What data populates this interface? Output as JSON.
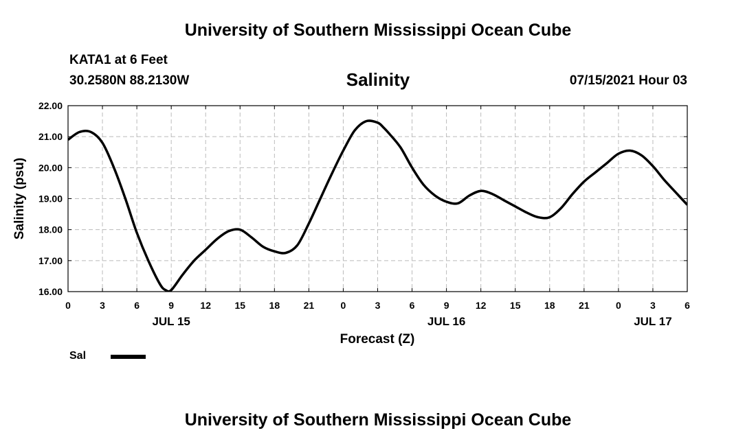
{
  "header": {
    "title": "University of Southern Mississippi Ocean Cube",
    "station": "KATA1 at 6 Feet",
    "coordinates": "30.2580N  88.2130W",
    "datetime": "07/15/2021 Hour 03"
  },
  "footer": {
    "title": "University of Southern Mississippi Ocean Cube"
  },
  "legend": {
    "label": "Sal"
  },
  "chart_data": {
    "type": "line",
    "title": "Salinity",
    "xlabel": "Forecast (Z)",
    "ylabel": "Salinity (psu)",
    "ylim": [
      16.0,
      22.0
    ],
    "yticks": [
      "16.00",
      "17.00",
      "18.00",
      "19.00",
      "20.00",
      "21.00",
      "22.00"
    ],
    "xlim": [
      0,
      54
    ],
    "xticks": [
      "0",
      "3",
      "6",
      "9",
      "12",
      "15",
      "18",
      "21",
      "0",
      "3",
      "6",
      "9",
      "12",
      "15",
      "18",
      "21",
      "0",
      "3",
      "6"
    ],
    "date_labels": [
      {
        "hour": 9,
        "label": "JUL 15"
      },
      {
        "hour": 33,
        "label": "JUL 16"
      },
      {
        "hour": 51,
        "label": "JUL 17"
      }
    ],
    "grid": true,
    "series": [
      {
        "name": "Sal",
        "color": "#000000",
        "x": [
          0,
          1,
          2,
          3,
          4,
          5,
          6,
          7,
          8,
          8.5,
          9,
          10,
          11,
          12,
          13,
          14,
          15,
          16,
          17,
          18,
          19,
          20,
          21,
          22,
          23,
          24,
          25,
          26,
          27,
          27.5,
          28,
          29,
          30,
          31,
          32,
          33,
          34,
          35,
          36,
          37,
          38,
          39,
          40,
          41,
          42,
          43,
          44,
          45,
          46,
          47,
          48,
          49,
          50,
          51,
          52,
          53,
          54
        ],
        "y": [
          20.9,
          21.15,
          21.15,
          20.8,
          20.0,
          19.0,
          17.9,
          17.0,
          16.25,
          16.05,
          16.05,
          16.55,
          17.0,
          17.35,
          17.7,
          17.95,
          18.0,
          17.75,
          17.45,
          17.3,
          17.25,
          17.5,
          18.2,
          19.0,
          19.8,
          20.55,
          21.2,
          21.5,
          21.45,
          21.3,
          21.1,
          20.65,
          20.0,
          19.45,
          19.1,
          18.9,
          18.85,
          19.1,
          19.25,
          19.15,
          18.95,
          18.75,
          18.55,
          18.4,
          18.4,
          18.7,
          19.15,
          19.55,
          19.85,
          20.15,
          20.45,
          20.55,
          20.4,
          20.05,
          19.6,
          19.2,
          18.8
        ]
      }
    ]
  }
}
